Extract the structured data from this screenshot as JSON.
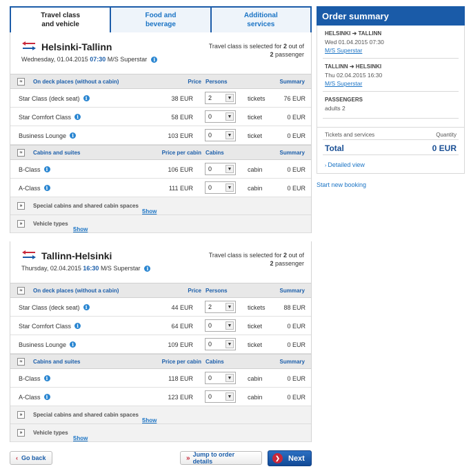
{
  "tabs": [
    {
      "label": "Travel class\nand vehicle"
    },
    {
      "label": "Food and\nbeverage"
    },
    {
      "label": "Additional\nservices"
    }
  ],
  "routes": [
    {
      "name": "Helsinki-Tallinn",
      "date_prefix": "Wednesday, 01.04.2015 ",
      "time": "07:30",
      "ship": " M/S Superstar",
      "note_pre": "Travel class is selected for ",
      "note_n1": "2",
      "note_mid": " out of",
      "note_n2": "2",
      "note_post": " passenger",
      "deck_header": {
        "title": "On deck places (without a cabin)",
        "price": "Price",
        "persons": "Persons",
        "summary": "Summary"
      },
      "deck_rows": [
        {
          "name": "Star Class (deck seat)",
          "price": "38 EUR",
          "qty": "2",
          "unit": "tickets",
          "sum": "76 EUR"
        },
        {
          "name": "Star Comfort Class",
          "price": "58 EUR",
          "qty": "0",
          "unit": "ticket",
          "sum": "0 EUR"
        },
        {
          "name": "Business Lounge",
          "price": "103 EUR",
          "qty": "0",
          "unit": "ticket",
          "sum": "0 EUR"
        }
      ],
      "cabin_header": {
        "title": "Cabins and suites",
        "price": "Price per cabin",
        "persons": "Cabins",
        "summary": "Summary"
      },
      "cabin_rows": [
        {
          "name": "B-Class",
          "price": "106 EUR",
          "qty": "0",
          "unit": "cabin",
          "sum": "0 EUR"
        },
        {
          "name": "A-Class",
          "price": "111 EUR",
          "qty": "0",
          "unit": "cabin",
          "sum": "0 EUR"
        }
      ],
      "special": {
        "label": "Special cabins and shared cabin spaces",
        "link": "Show"
      },
      "vehicle": {
        "label": "Vehicle types",
        "link": "Show"
      }
    },
    {
      "name": "Tallinn-Helsinki",
      "date_prefix": "Thursday, 02.04.2015 ",
      "time": "16:30",
      "ship": " M/S Superstar",
      "note_pre": "Travel class is selected for ",
      "note_n1": "2",
      "note_mid": " out of",
      "note_n2": "2",
      "note_post": " passenger",
      "deck_header": {
        "title": "On deck places (without a cabin)",
        "price": "Price",
        "persons": "Persons",
        "summary": "Summary"
      },
      "deck_rows": [
        {
          "name": "Star Class (deck seat)",
          "price": "44 EUR",
          "qty": "2",
          "unit": "tickets",
          "sum": "88 EUR"
        },
        {
          "name": "Star Comfort Class",
          "price": "64 EUR",
          "qty": "0",
          "unit": "ticket",
          "sum": "0 EUR"
        },
        {
          "name": "Business Lounge",
          "price": "109 EUR",
          "qty": "0",
          "unit": "ticket",
          "sum": "0 EUR"
        }
      ],
      "cabin_header": {
        "title": "Cabins and suites",
        "price": "Price per cabin",
        "persons": "Cabins",
        "summary": "Summary"
      },
      "cabin_rows": [
        {
          "name": "B-Class",
          "price": "118 EUR",
          "qty": "0",
          "unit": "cabin",
          "sum": "0 EUR"
        },
        {
          "name": "A-Class",
          "price": "123 EUR",
          "qty": "0",
          "unit": "cabin",
          "sum": "0 EUR"
        }
      ],
      "special": {
        "label": "Special cabins and shared cabin spaces",
        "link": "Show"
      },
      "vehicle": {
        "label": "Vehicle types",
        "link": "Show"
      }
    }
  ],
  "buttons": {
    "back": "Go back",
    "jump": "Jump to order details",
    "next": "Next"
  },
  "order_summary": {
    "title": "Order summary",
    "legs": [
      {
        "from": "HELSINKI",
        "to": "TALLINN",
        "datetime": "Wed 01.04.2015 07:30",
        "ship": "M/S Superstar"
      },
      {
        "from": "TALLINN",
        "to": "HELSINKI",
        "datetime": "Thu 02.04.2015 16:30",
        "ship": "M/S Superstar"
      }
    ],
    "passengers_label": "PASSENGERS",
    "passengers_value": "adults 2",
    "tickets_label": "Tickets and services",
    "quantity_label": "Quantity",
    "total_label": "Total",
    "total_value": "0 EUR",
    "detailed_view": "Detailed view",
    "start_new": "Start new booking"
  },
  "colors": {
    "brand": "#1a5ba8",
    "link": "#1b74c5",
    "next_icon": "#c8283a"
  },
  "icons": [
    "route-arrows-icon",
    "info-icon",
    "collapse-toggle-icon",
    "expand-toggle-icon",
    "dropdown-arrow-icon",
    "chevron-left-icon",
    "double-chevron-right-icon",
    "next-arrow-icon",
    "arrow-right-icon"
  ]
}
